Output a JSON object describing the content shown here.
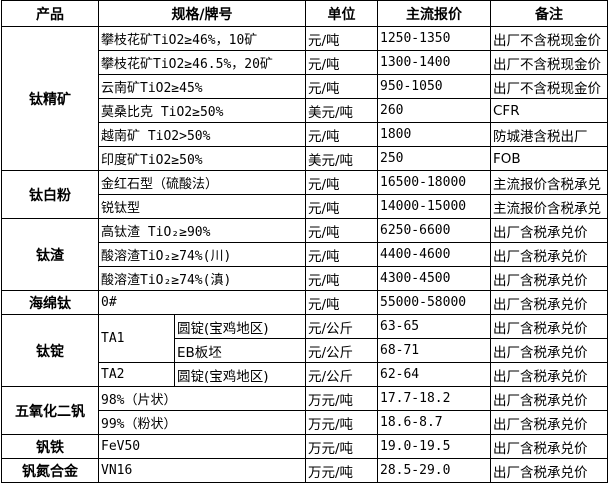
{
  "headers": [
    "产品",
    "规格/牌号",
    "单位",
    "主流报价",
    "备注"
  ],
  "products": [
    {
      "name": "钛精矿",
      "rows": [
        {
          "spec": "攀枝花矿TiO2≥46%，10矿",
          "unit": "元/吨",
          "price": "1250-1350",
          "note": "出厂不含税现金价"
        },
        {
          "spec": "攀枝花矿TiO2≥46.5%，20矿",
          "unit": "元/吨",
          "price": "1300-1400",
          "note": "出厂不含税现金价"
        },
        {
          "spec": "云南矿TiO2≥45%",
          "unit": "元/吨",
          "price": "950-1050",
          "note": "出厂不含税现金价"
        },
        {
          "spec": "莫桑比克 TiO2≥50%",
          "unit": "美元/吨",
          "price": "260",
          "note": "CFR"
        },
        {
          "spec": "越南矿 TiO2>50%",
          "unit": "元/吨",
          "price": "1800",
          "note": "防城港含税出厂"
        },
        {
          "spec": "印度矿TiO2≥50%",
          "unit": "美元/吨",
          "price": "250",
          "note": "FOB"
        }
      ]
    },
    {
      "name": "钛白粉",
      "rows": [
        {
          "spec": "金红石型（硫酸法）",
          "unit": "元/吨",
          "price": "16500-18000",
          "note": "主流报价含税承兑"
        },
        {
          "spec": "锐钛型",
          "unit": "元/吨",
          "price": "14000-15000",
          "note": "主流报价含税承兑"
        }
      ]
    },
    {
      "name": "钛渣",
      "rows": [
        {
          "spec": "高钛渣 TiO₂≥90%",
          "unit": "元/吨",
          "price": "6250-6600",
          "note": "出厂含税承兑价"
        },
        {
          "spec": "酸溶渣TiO₂≥74%(川)",
          "unit": "元/吨",
          "price": "4400-4600",
          "note": "出厂含税承兑价"
        },
        {
          "spec": "酸溶渣TiO₂≥74%(滇)",
          "unit": "元/吨",
          "price": "4300-4500",
          "note": "出厂含税承兑价"
        }
      ]
    },
    {
      "name": "海绵钛",
      "rows": [
        {
          "spec": "0#",
          "unit": "元/吨",
          "price": "55000-58000",
          "note": "出厂含税承兑价"
        }
      ]
    },
    {
      "name": "钛锭",
      "grades": [
        {
          "grade": "TA1",
          "rows": [
            {
              "spec": "圆锭(宝鸡地区)",
              "unit": "元/公斤",
              "price": "63-65",
              "note": "出厂含税承兑价"
            },
            {
              "spec": "EB板坯",
              "unit": "元/公斤",
              "price": "68-71",
              "note": "出厂含税承兑价"
            }
          ]
        },
        {
          "grade": "TA2",
          "rows": [
            {
              "spec": "圆锭(宝鸡地区)",
              "unit": "元/公斤",
              "price": "62-64",
              "note": "出厂含税承兑价"
            }
          ]
        }
      ]
    },
    {
      "name": "五氧化二钒",
      "rows": [
        {
          "spec": "98%（片状）",
          "unit": "万元/吨",
          "price": "17.7-18.2",
          "note": "出厂含税承兑价"
        },
        {
          "spec": "99%（粉状）",
          "unit": "万元/吨",
          "price": "18.6-8.7",
          "note": "出厂含税承兑价"
        }
      ]
    },
    {
      "name": "钒铁",
      "rows": [
        {
          "spec": "FeV50",
          "unit": "万元/吨",
          "price": "19.0-19.5",
          "note": "出厂含税承兑价"
        }
      ]
    },
    {
      "name": "钒氮合金",
      "rows": [
        {
          "spec": "VN16",
          "unit": "万元/吨",
          "price": "28.5-29.0",
          "note": "出厂含税承兑价"
        }
      ]
    }
  ]
}
